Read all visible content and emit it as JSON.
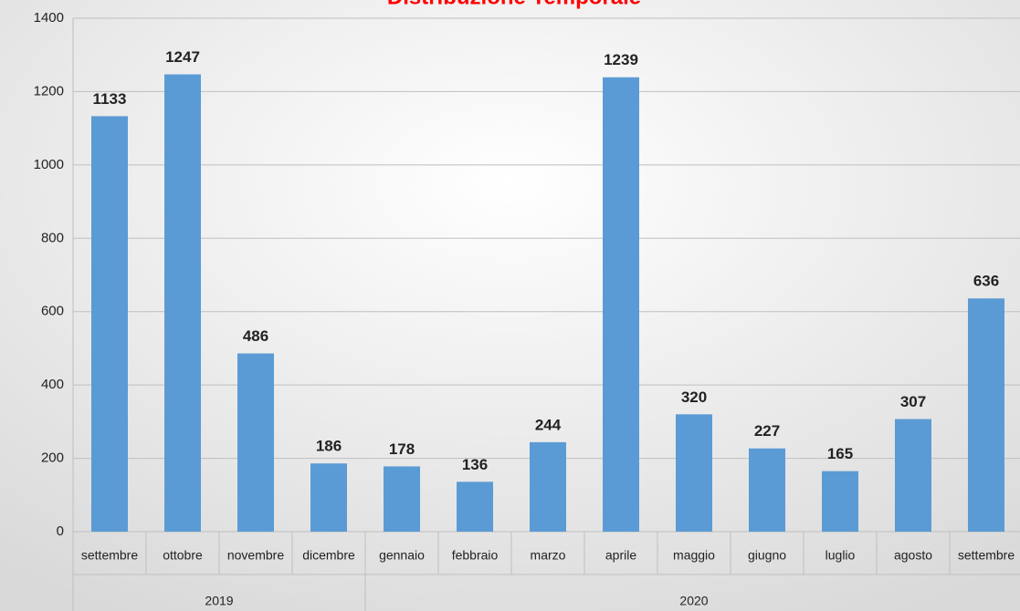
{
  "chart_data": {
    "type": "bar",
    "title": "Distribuzione Temporale",
    "groups": [
      {
        "name": "2019",
        "categories": [
          "settembre",
          "ottobre",
          "novembre",
          "dicembre"
        ],
        "values": [
          1133,
          1247,
          486,
          186
        ]
      },
      {
        "name": "2020",
        "categories": [
          "gennaio",
          "febbraio",
          "marzo",
          "aprile",
          "maggio",
          "giugno",
          "luglio",
          "agosto",
          "settembre"
        ],
        "values": [
          178,
          136,
          244,
          1239,
          320,
          227,
          165,
          307,
          636
        ]
      }
    ],
    "color": "#5b9bd5",
    "ylim": [
      0,
      1400
    ],
    "yticks": [
      0,
      200,
      400,
      600,
      800,
      1000,
      1200,
      1400
    ],
    "grid": true
  }
}
